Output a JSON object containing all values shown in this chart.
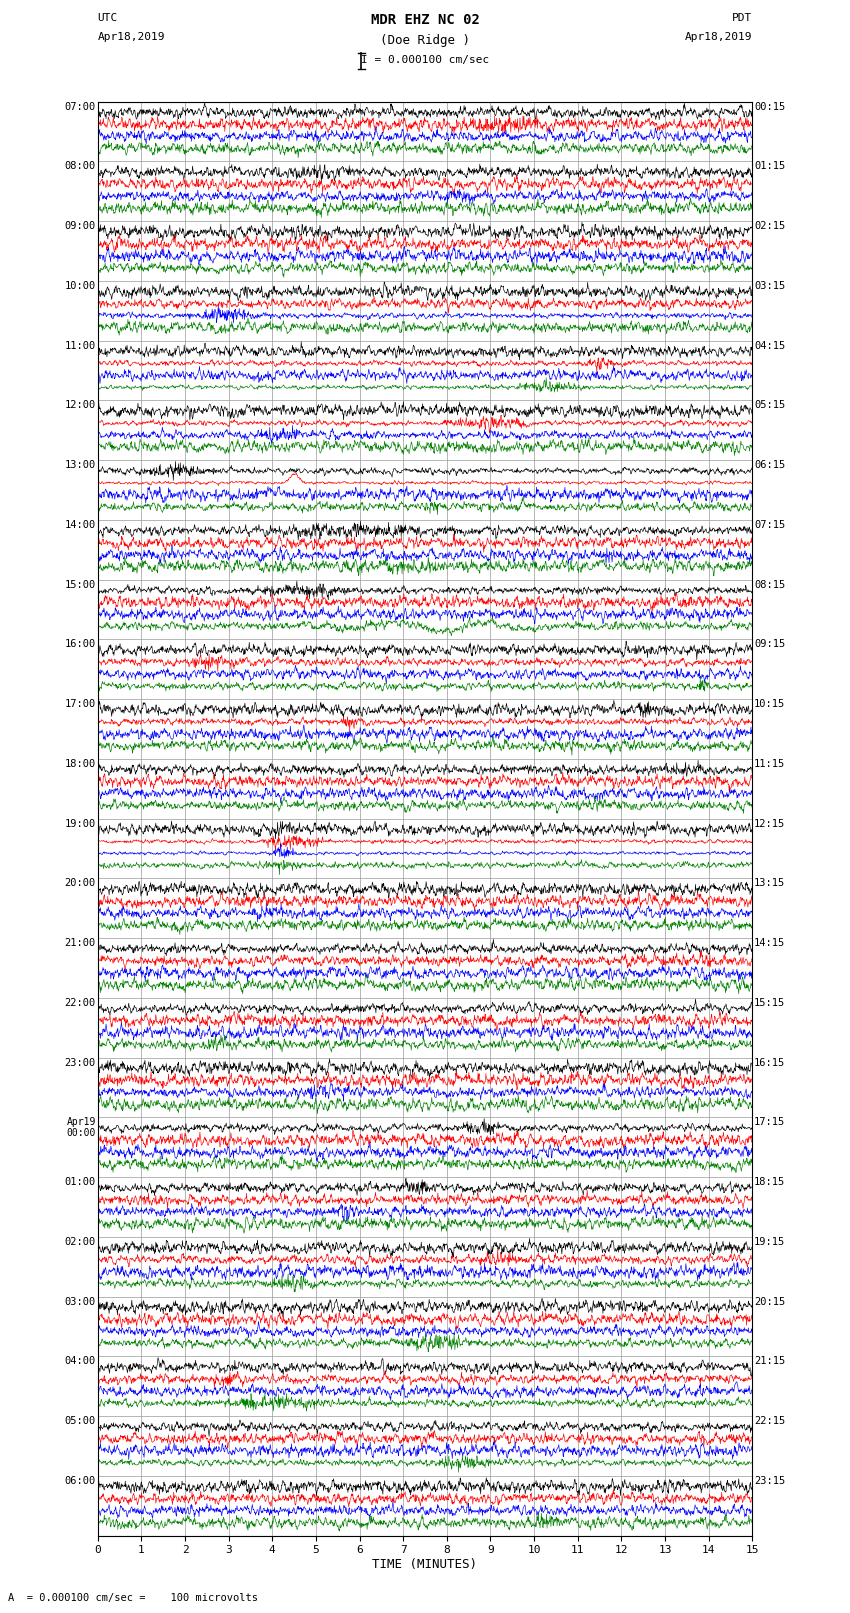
{
  "title_line1": "MDR EHZ NC 02",
  "title_line2": "(Doe Ridge )",
  "scale_label": "I = 0.000100 cm/sec",
  "label_left_top": "UTC",
  "label_left_date": "Apr18,2019",
  "label_right_top": "PDT",
  "label_right_date": "Apr18,2019",
  "xlabel": "TIME (MINUTES)",
  "footnote": "A  = 0.000100 cm/sec =    100 microvolts",
  "utc_labels": [
    "07:00",
    "08:00",
    "09:00",
    "10:00",
    "11:00",
    "12:00",
    "13:00",
    "14:00",
    "15:00",
    "16:00",
    "17:00",
    "18:00",
    "19:00",
    "20:00",
    "21:00",
    "22:00",
    "23:00",
    "Apr19\n00:00",
    "01:00",
    "02:00",
    "03:00",
    "04:00",
    "05:00",
    "06:00"
  ],
  "pdt_labels": [
    "00:15",
    "01:15",
    "02:15",
    "03:15",
    "04:15",
    "05:15",
    "06:15",
    "07:15",
    "08:15",
    "09:15",
    "10:15",
    "11:15",
    "12:15",
    "13:15",
    "14:15",
    "15:15",
    "16:15",
    "17:15",
    "18:15",
    "19:15",
    "20:15",
    "21:15",
    "22:15",
    "23:15"
  ],
  "num_rows": 24,
  "traces_per_row": 4,
  "colors": [
    "black",
    "red",
    "blue",
    "green"
  ],
  "bg_color": "#ffffff",
  "grid_color": "#999999",
  "x_ticks": [
    0,
    1,
    2,
    3,
    4,
    5,
    6,
    7,
    8,
    9,
    10,
    11,
    12,
    13,
    14,
    15
  ],
  "x_lim": [
    0,
    15
  ],
  "fig_width": 8.5,
  "fig_height": 16.13,
  "dpi": 100,
  "num_points": 1500,
  "vline_minutes": [
    1,
    2,
    3,
    4,
    5,
    6,
    7,
    8,
    9,
    10,
    11,
    12,
    13,
    14
  ],
  "april19_row": 17
}
